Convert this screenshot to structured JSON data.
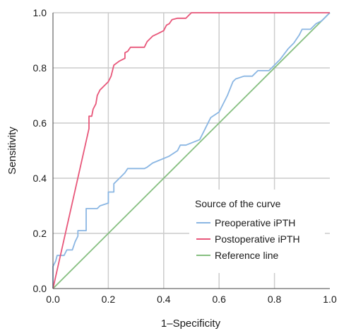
{
  "chart_data": {
    "type": "line",
    "xlabel": "1–Specificity",
    "ylabel": "Sensitivity",
    "xlim": [
      0,
      1
    ],
    "ylim": [
      0,
      1
    ],
    "x_ticks": [
      "0.0",
      "0.2",
      "0.4",
      "0.6",
      "0.8",
      "1.0"
    ],
    "y_ticks": [
      "0.0",
      "0.2",
      "0.4",
      "0.6",
      "0.8",
      "1.0"
    ],
    "grid": true,
    "legend": {
      "title": "Source of the curve",
      "placement": "bottom-right"
    },
    "series": [
      {
        "name": "Preoperative iPTH",
        "color": "#8ab6e3",
        "points": [
          [
            0.0,
            0.0
          ],
          [
            0.0,
            0.08
          ],
          [
            0.01,
            0.1
          ],
          [
            0.015,
            0.12
          ],
          [
            0.04,
            0.12
          ],
          [
            0.05,
            0.14
          ],
          [
            0.07,
            0.14
          ],
          [
            0.08,
            0.17
          ],
          [
            0.09,
            0.19
          ],
          [
            0.09,
            0.21
          ],
          [
            0.12,
            0.21
          ],
          [
            0.12,
            0.29
          ],
          [
            0.16,
            0.29
          ],
          [
            0.17,
            0.3
          ],
          [
            0.2,
            0.31
          ],
          [
            0.2,
            0.35
          ],
          [
            0.22,
            0.35
          ],
          [
            0.22,
            0.38
          ],
          [
            0.24,
            0.4
          ],
          [
            0.26,
            0.42
          ],
          [
            0.27,
            0.435
          ],
          [
            0.33,
            0.435
          ],
          [
            0.34,
            0.44
          ],
          [
            0.36,
            0.455
          ],
          [
            0.42,
            0.48
          ],
          [
            0.45,
            0.5
          ],
          [
            0.46,
            0.52
          ],
          [
            0.48,
            0.52
          ],
          [
            0.53,
            0.54
          ],
          [
            0.55,
            0.58
          ],
          [
            0.57,
            0.62
          ],
          [
            0.6,
            0.64
          ],
          [
            0.63,
            0.7
          ],
          [
            0.65,
            0.75
          ],
          [
            0.66,
            0.76
          ],
          [
            0.69,
            0.77
          ],
          [
            0.72,
            0.77
          ],
          [
            0.74,
            0.79
          ],
          [
            0.78,
            0.79
          ],
          [
            0.8,
            0.81
          ],
          [
            0.82,
            0.83
          ],
          [
            0.85,
            0.87
          ],
          [
            0.87,
            0.89
          ],
          [
            0.89,
            0.92
          ],
          [
            0.9,
            0.94
          ],
          [
            0.93,
            0.94
          ],
          [
            0.95,
            0.96
          ],
          [
            0.97,
            0.97
          ],
          [
            0.98,
            0.98
          ],
          [
            1.0,
            1.0
          ]
        ]
      },
      {
        "name": "Postoperative iPTH",
        "color": "#e8577a",
        "points": [
          [
            0.0,
            0.0
          ],
          [
            0.13,
            0.58
          ],
          [
            0.13,
            0.625
          ],
          [
            0.14,
            0.625
          ],
          [
            0.145,
            0.65
          ],
          [
            0.155,
            0.67
          ],
          [
            0.16,
            0.7
          ],
          [
            0.17,
            0.72
          ],
          [
            0.19,
            0.74
          ],
          [
            0.2,
            0.75
          ],
          [
            0.21,
            0.77
          ],
          [
            0.22,
            0.81
          ],
          [
            0.24,
            0.825
          ],
          [
            0.26,
            0.835
          ],
          [
            0.26,
            0.855
          ],
          [
            0.27,
            0.86
          ],
          [
            0.28,
            0.875
          ],
          [
            0.33,
            0.875
          ],
          [
            0.34,
            0.895
          ],
          [
            0.36,
            0.915
          ],
          [
            0.38,
            0.925
          ],
          [
            0.4,
            0.935
          ],
          [
            0.41,
            0.955
          ],
          [
            0.42,
            0.96
          ],
          [
            0.43,
            0.975
          ],
          [
            0.45,
            0.98
          ],
          [
            0.48,
            0.98
          ],
          [
            0.49,
            0.99
          ],
          [
            0.5,
            1.0
          ],
          [
            1.0,
            1.0
          ]
        ]
      },
      {
        "name": "Reference line",
        "color": "#86bf80",
        "points": [
          [
            0.0,
            0.0
          ],
          [
            1.0,
            1.0
          ]
        ]
      }
    ]
  }
}
